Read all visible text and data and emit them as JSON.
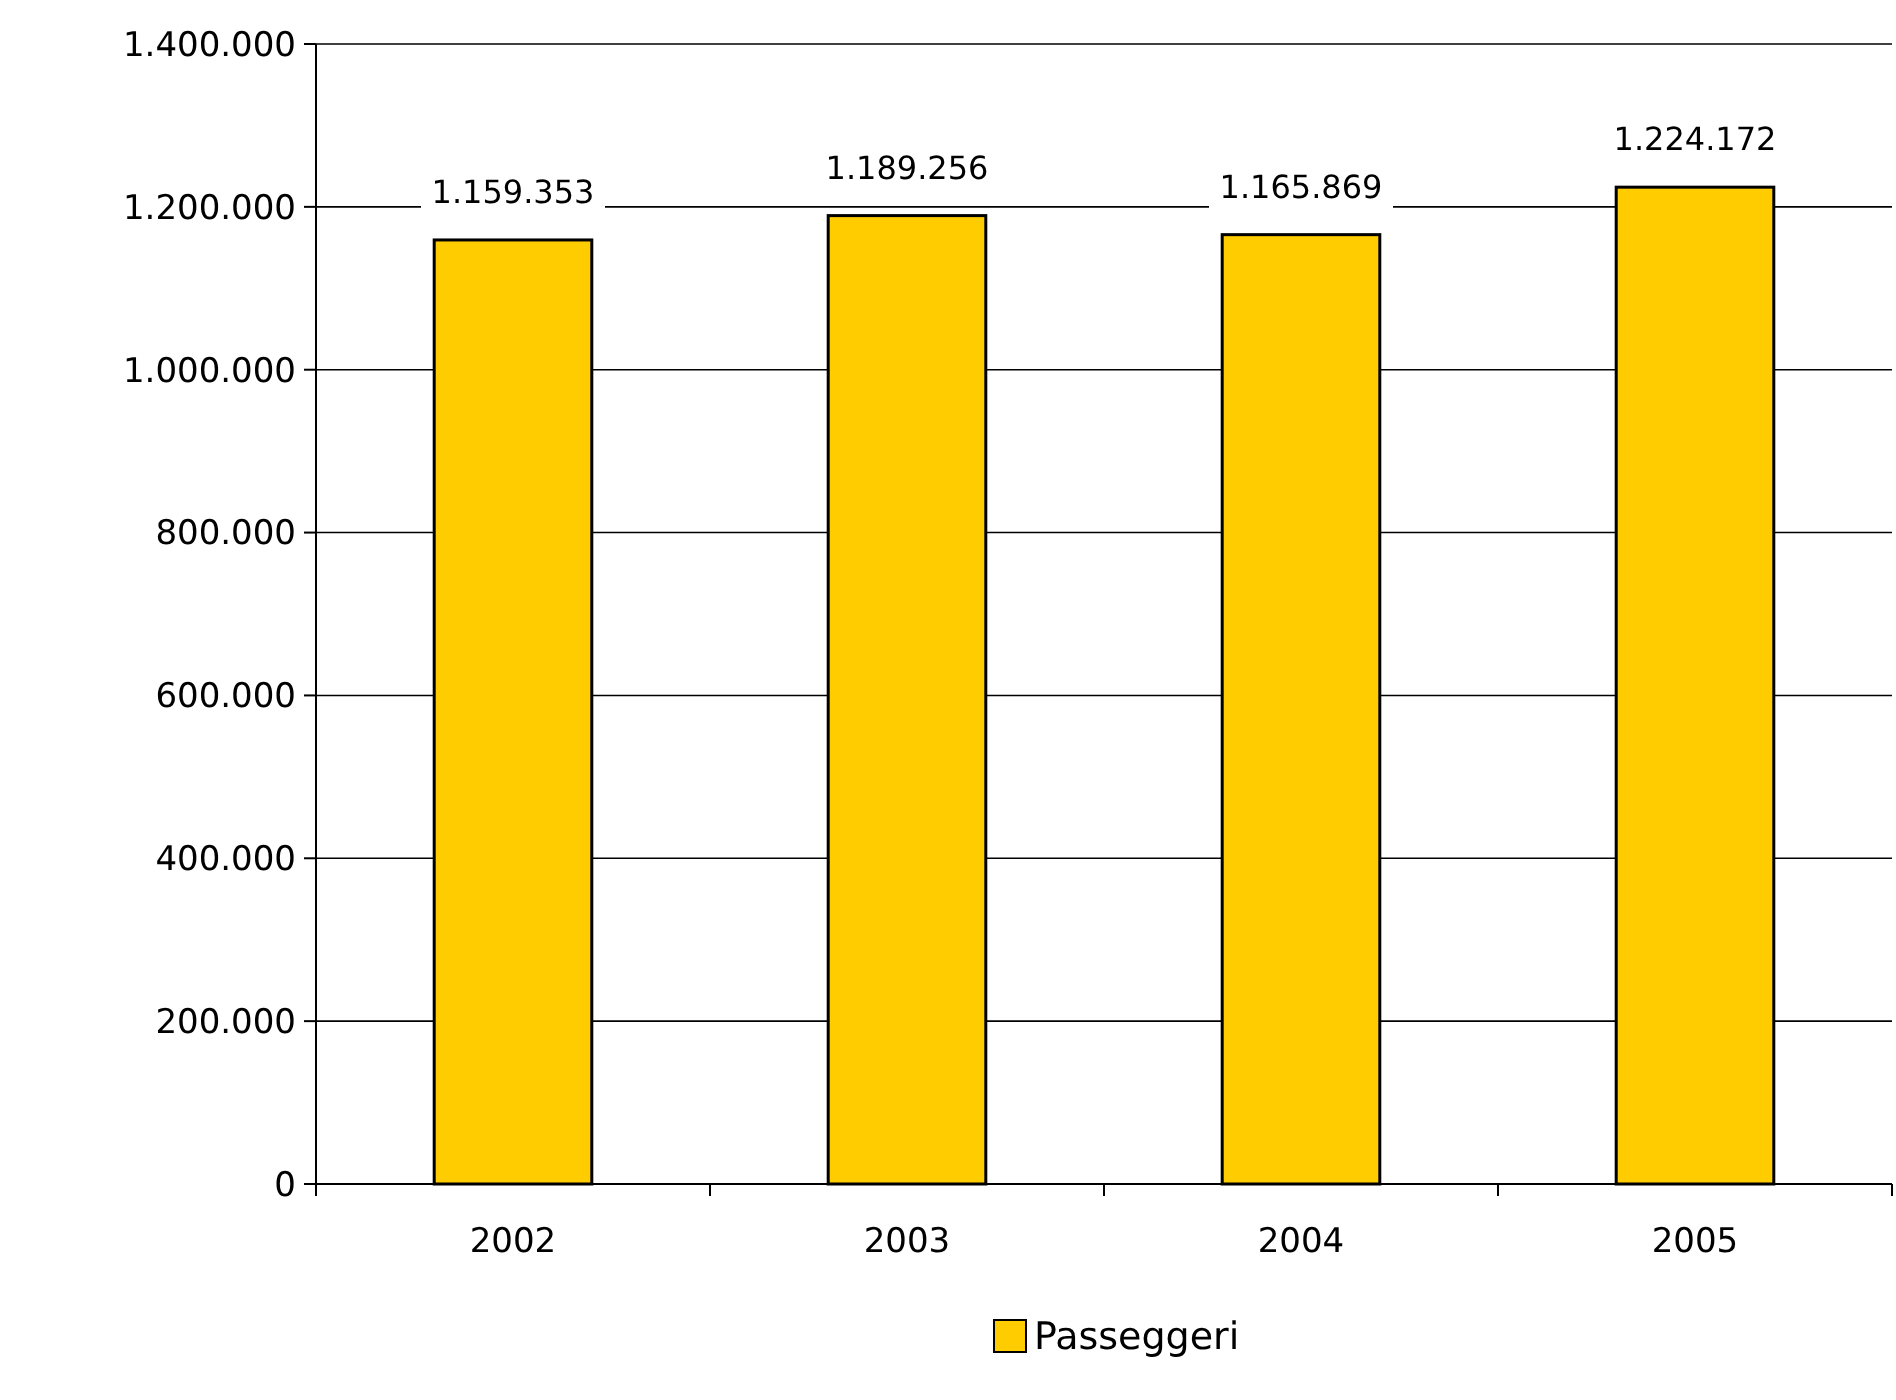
{
  "chart_data": {
    "type": "bar",
    "categories": [
      "2002",
      "2003",
      "2004",
      "2005"
    ],
    "series": [
      {
        "name": "Passeggeri",
        "color": "#ffcc00",
        "values": [
          1159353,
          1189256,
          1165869,
          1224172
        ],
        "value_labels": [
          "1.159.353",
          "1.189.256",
          "1.165.869",
          "1.224.172"
        ]
      }
    ],
    "ylim": [
      0,
      1400000
    ],
    "yticks": [
      0,
      {
        "value": 200000,
        "label": "200.000"
      },
      {
        "value": 400000,
        "label": "400.000"
      },
      {
        "value": 600000,
        "label": "600.000"
      },
      {
        "value": 800000,
        "label": "800.000"
      },
      {
        "value": 1000000,
        "label": "1.000.000"
      },
      {
        "value": 1200000,
        "label": "1.200.000"
      },
      {
        "value": 1400000,
        "label": "1.400.000"
      }
    ],
    "grid": "y",
    "legend": "bottom"
  }
}
